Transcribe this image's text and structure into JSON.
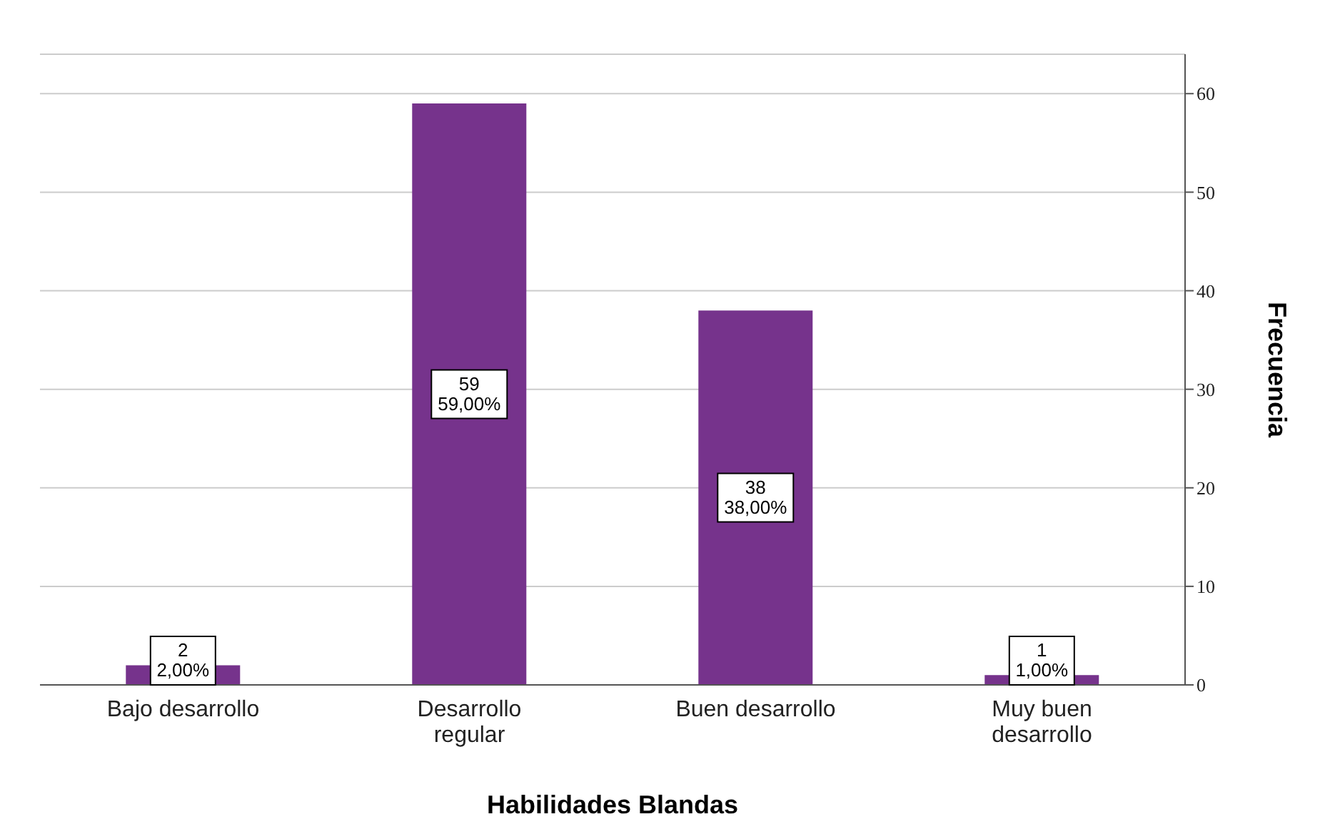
{
  "chart_data": {
    "type": "bar",
    "xlabel": "Habilidades Blandas",
    "ylabel": "Frecuencia",
    "categories": [
      "Bajo desarrollo",
      "Desarrollo regular",
      "Buen desarrollo",
      "Muy buen desarrollo"
    ],
    "values": [
      2,
      59,
      38,
      1
    ],
    "value_labels": [
      "2\n2,00%",
      "59\n59,00%",
      "38\n38,00%",
      "1\n1,00%"
    ],
    "color": "#76338c",
    "ylim": [
      0,
      64
    ],
    "yticks": [
      0,
      10,
      20,
      30,
      40,
      50,
      60
    ],
    "grid": "y"
  }
}
